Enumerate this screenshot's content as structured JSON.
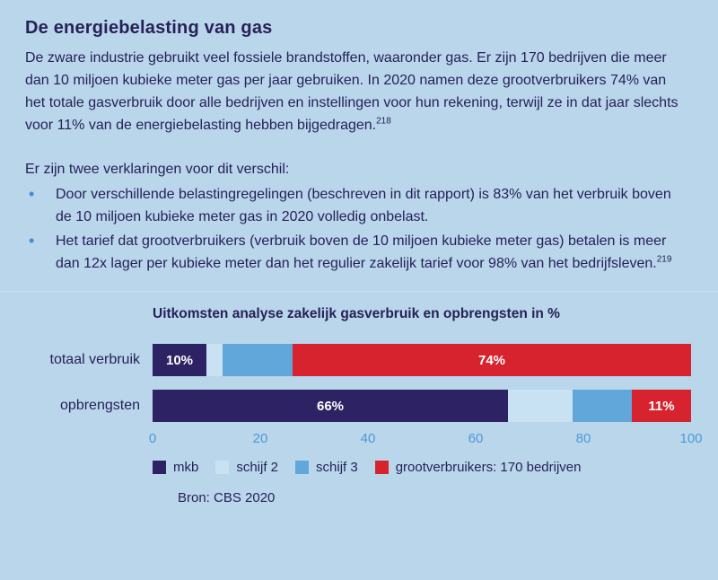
{
  "article": {
    "title": "De energiebelasting van gas",
    "paragraph1": "De zware industrie gebruikt veel fossiele brandstoffen, waaronder gas. Er zijn 170 bedrijven die meer dan 10 miljoen kubieke meter gas per jaar gebruiken. In 2020 namen deze grootverbruikers 74% van het totale gasverbruik door alle bedrijven en instellingen voor hun rekening, terwijl ze in dat jaar slechts voor 11% van de energiebelasting hebben bijgedragen.",
    "footnote1": "218",
    "intro2": "Er zijn twee verklaringen voor dit verschil:",
    "bullets": [
      {
        "text": "Door verschillende belastingregelingen (beschreven in dit rapport) is 83% van het verbruik boven de 10 miljoen kubieke meter gas in 2020 volledig onbelast.",
        "footnote": ""
      },
      {
        "text": "Het tarief dat grootverbruikers (verbruik boven de 10 miljoen kubieke meter gas) betalen is meer dan 12x lager per kubieke meter dan het regulier zakelijk tarief voor 98% van het bedrijfsleven.",
        "footnote": "219"
      }
    ]
  },
  "chart_data": {
    "type": "bar",
    "orientation": "horizontal",
    "stacked": true,
    "title": "Uitkomsten analyse zakelijk gasverbruik en opbrengsten in %",
    "categories": [
      "totaal verbruik",
      "opbrengsten"
    ],
    "series": [
      {
        "name": "mkb",
        "color": "#2d2364",
        "values": [
          10,
          66
        ],
        "labels": [
          "10%",
          "66%"
        ]
      },
      {
        "name": "schijf 2",
        "color": "#c9e2f3",
        "values": [
          3,
          12
        ],
        "labels": [
          "",
          ""
        ]
      },
      {
        "name": "schijf 3",
        "color": "#61a7da",
        "values": [
          13,
          11
        ],
        "labels": [
          "",
          ""
        ]
      },
      {
        "name": "grootverbruikers: 170 bedrijven",
        "color": "#d6232e",
        "values": [
          74,
          11
        ],
        "labels": [
          "74%",
          "11%"
        ]
      }
    ],
    "xlim": [
      0,
      100
    ],
    "xticks": [
      "0",
      "20",
      "40",
      "60",
      "80",
      "100"
    ],
    "legend_position": "bottom",
    "source": "Bron: CBS 2020"
  },
  "colors": {
    "background": "#b9d6eb",
    "text": "#262158",
    "bullet": "#3e8ed6",
    "axis_tick": "#4f99d5"
  }
}
